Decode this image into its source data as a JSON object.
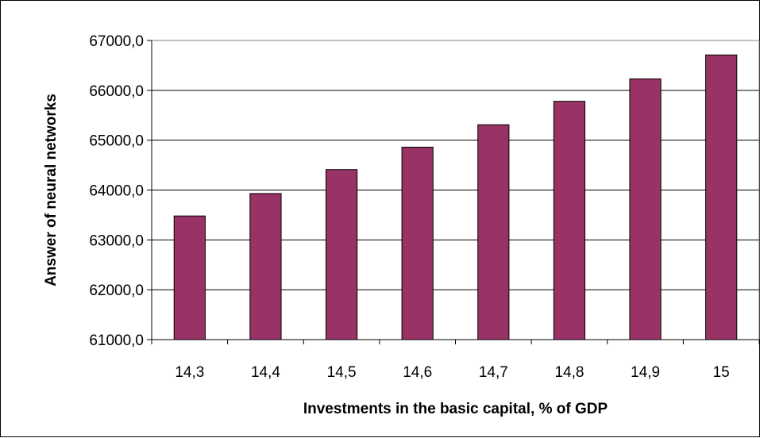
{
  "chart_data": {
    "type": "bar",
    "categories": [
      "14,3",
      "14,4",
      "14,5",
      "14,6",
      "14,7",
      "14,8",
      "14,9",
      "15"
    ],
    "values": [
      63480,
      63930,
      64410,
      64860,
      65310,
      65780,
      66230,
      66710
    ],
    "title": "",
    "xlabel": "Investments in the basic capital, % of GDP",
    "ylabel": "Answer of neural networks",
    "ylim": [
      61000,
      67000
    ],
    "yticks": [
      61000,
      62000,
      63000,
      64000,
      65000,
      66000,
      67000
    ],
    "ytick_labels": [
      "61000,0",
      "62000,0",
      "63000,0",
      "64000,0",
      "65000,0",
      "66000,0",
      "67000,0"
    ],
    "grid": true,
    "legend": "none",
    "bar_color": "#993366"
  }
}
